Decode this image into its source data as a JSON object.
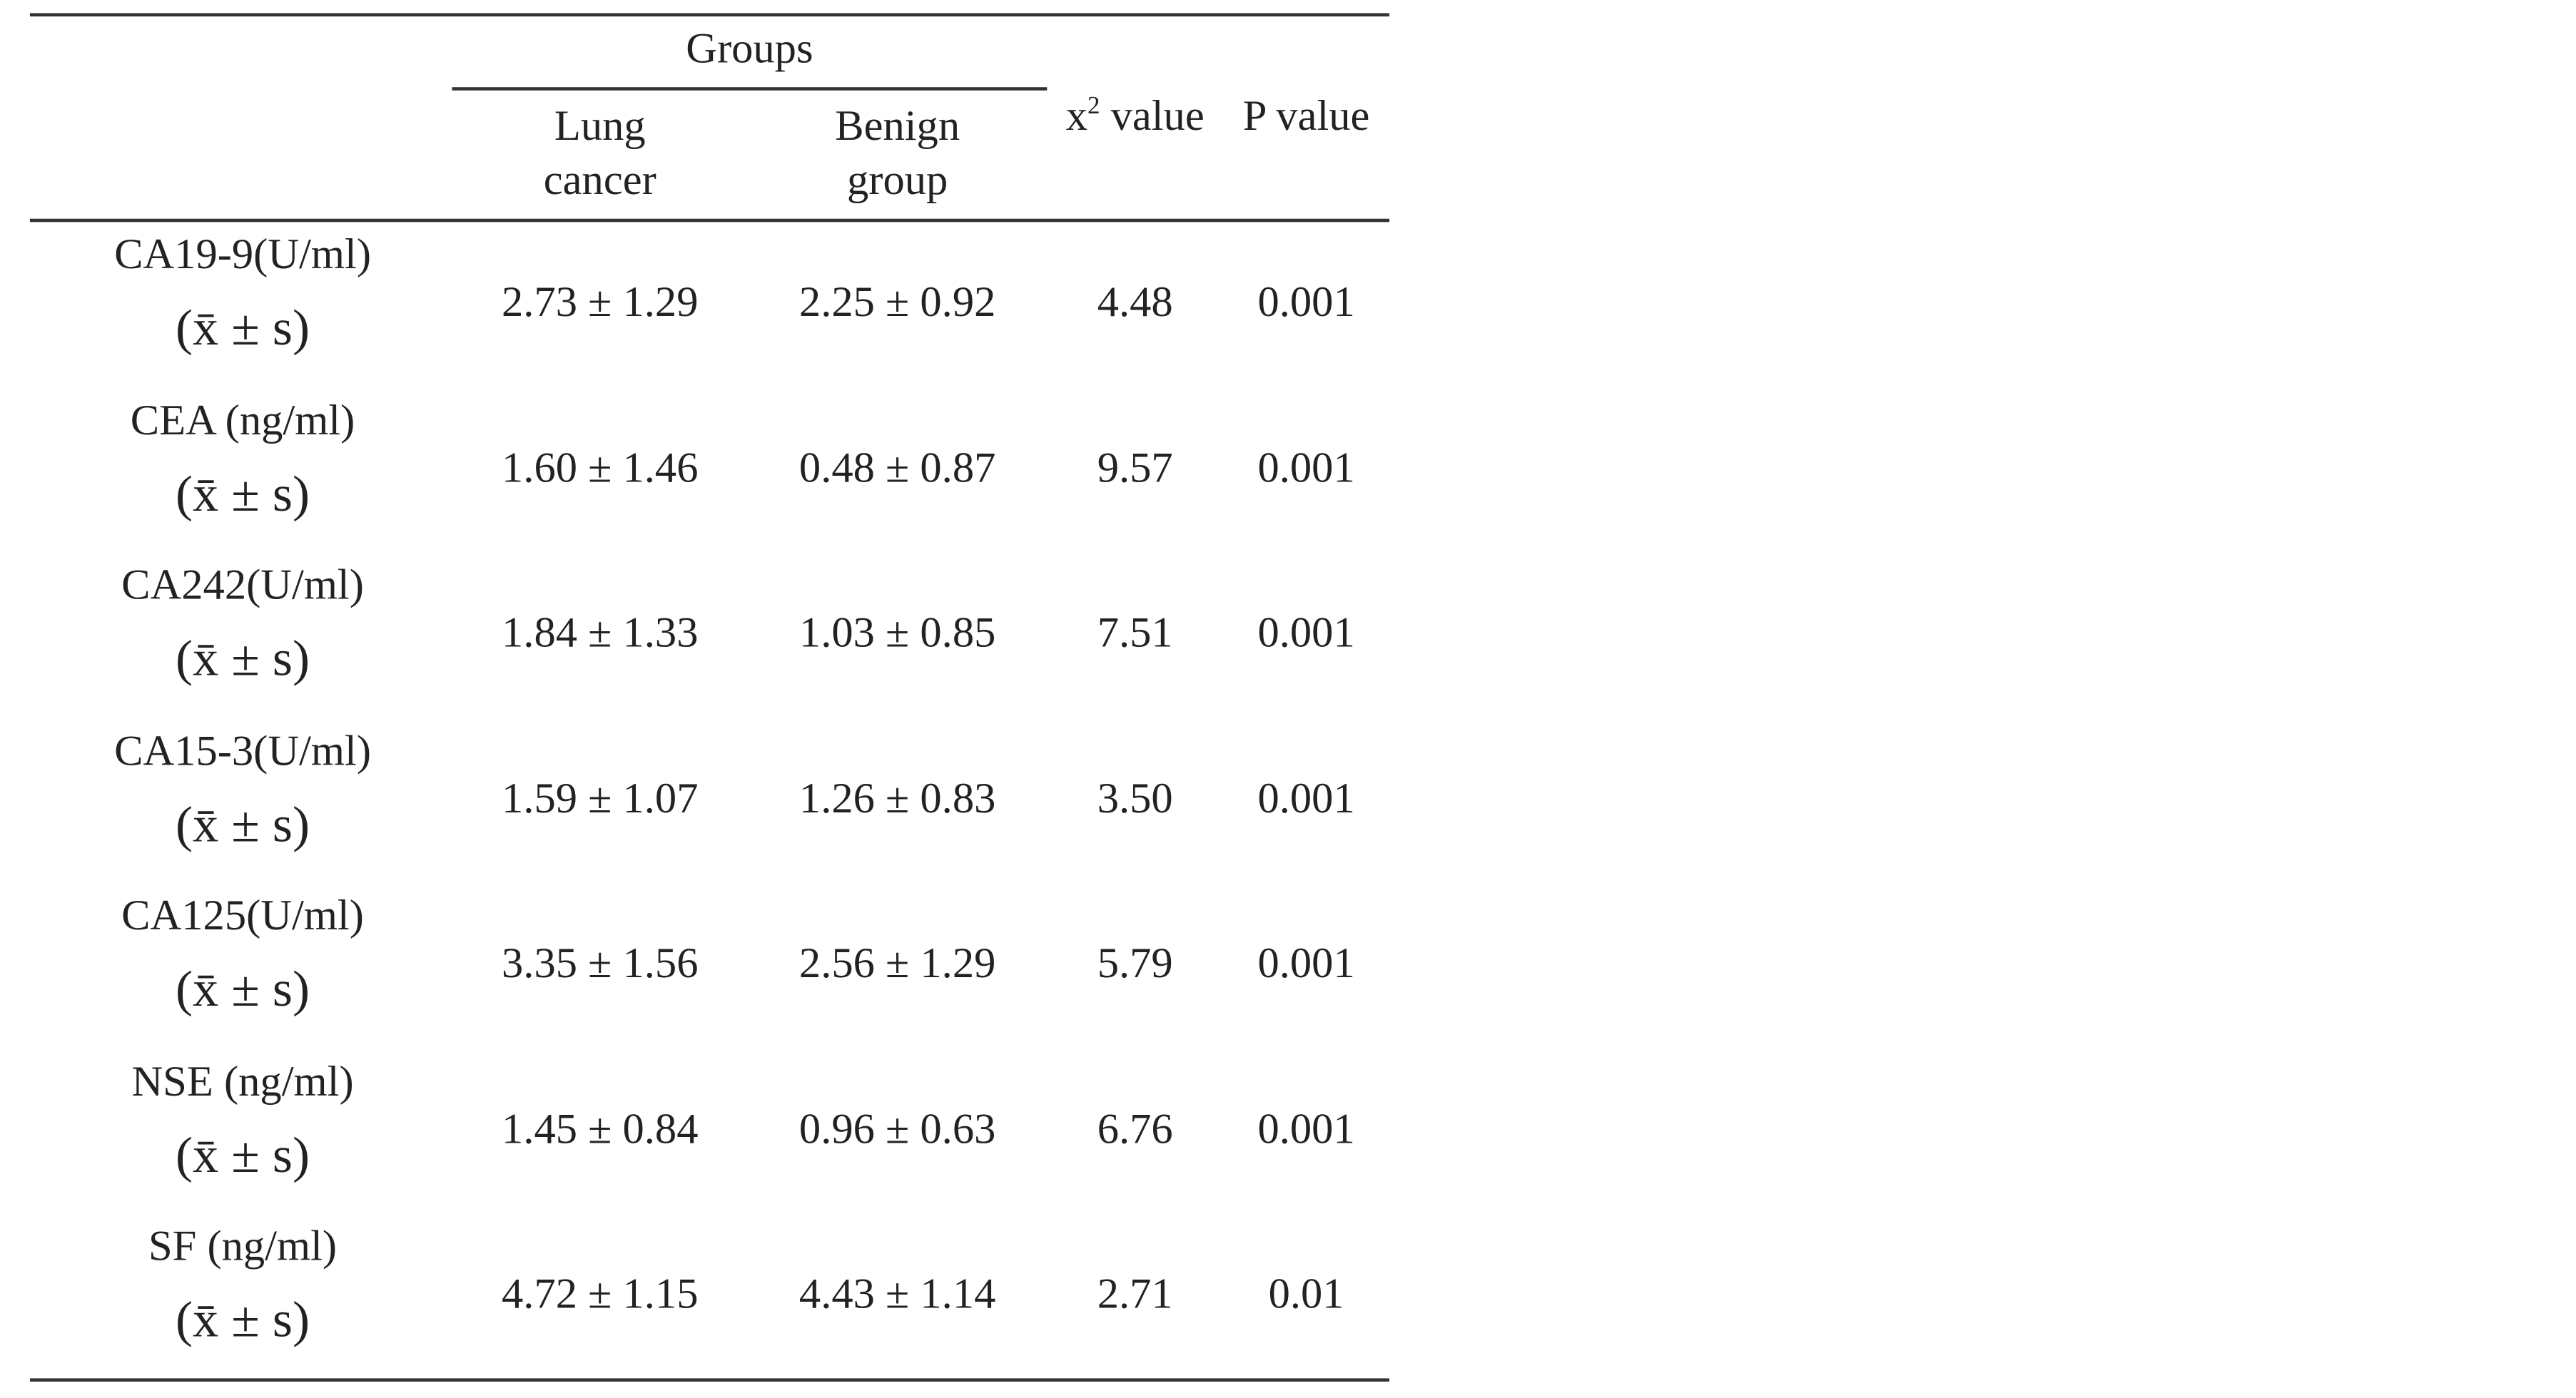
{
  "table": {
    "header": {
      "group": "Groups",
      "columns": [
        [
          "Lung",
          "cancer"
        ],
        [
          "Benign",
          "group"
        ]
      ],
      "chi": {
        "base": "x",
        "sup": "2",
        "rest": " value"
      },
      "p": "P value"
    },
    "rows": [
      {
        "label": "CA19-9(U/ml)",
        "stat": "(x̄ ± s)",
        "lung": "2.73 ± 1.29",
        "benign": "2.25 ± 0.92",
        "chi": "4.48",
        "p": "0.001"
      },
      {
        "label": "CEA (ng/ml)",
        "stat": "(x̄ ± s)",
        "lung": "1.60 ± 1.46",
        "benign": "0.48 ± 0.87",
        "chi": "9.57",
        "p": "0.001"
      },
      {
        "label": "CA242(U/ml)",
        "stat": "(x̄ ± s)",
        "lung": "1.84 ± 1.33",
        "benign": "1.03 ± 0.85",
        "chi": "7.51",
        "p": "0.001"
      },
      {
        "label": "CA15-3(U/ml)",
        "stat": "(x̄ ± s)",
        "lung": "1.59 ± 1.07",
        "benign": "1.26 ± 0.83",
        "chi": "3.50",
        "p": "0.001"
      },
      {
        "label": "CA125(U/ml)",
        "stat": "(x̄ ± s)",
        "lung": "3.35 ± 1.56",
        "benign": "2.56 ± 1.29",
        "chi": "5.79",
        "p": "0.001"
      },
      {
        "label": "NSE (ng/ml)",
        "stat": "(x̄ ± s)",
        "lung": "1.45 ± 0.84",
        "benign": "0.96 ± 0.63",
        "chi": "6.76",
        "p": "0.001"
      },
      {
        "label": "SF (ng/ml)",
        "stat": "(x̄ ± s)",
        "lung": "4.72 ± 1.15",
        "benign": "4.43 ± 1.14",
        "chi": "2.71",
        "p": "0.01"
      }
    ]
  }
}
